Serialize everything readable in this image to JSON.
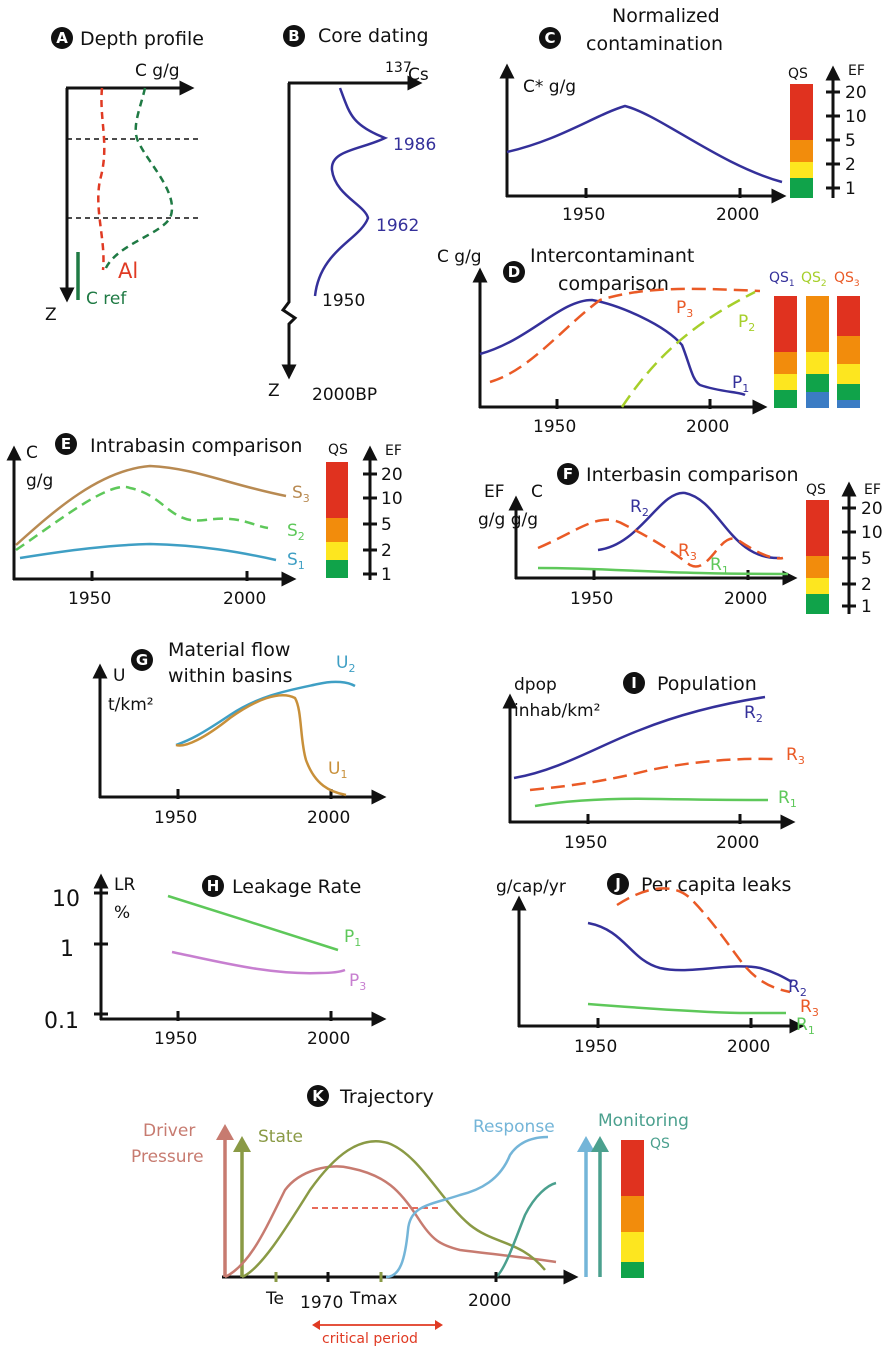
{
  "colors": {
    "navy": "#34309a",
    "orange": "#ea5a26",
    "green": "#1f7a44",
    "lime": "#a6cf2a",
    "red": "#e03a23",
    "brown": "#b88a52",
    "lightgreen": "#5ec85a",
    "teal": "#3f9fc4",
    "gold": "#c8903a",
    "violet": "#c77fd0",
    "rose": "#c77b70",
    "olive": "#8a9a45",
    "skyblue": "#74b5d8",
    "seagreen": "#4ba08e",
    "qs_red": "#e0321f",
    "qs_orange": "#f28c0c",
    "qs_yellow": "#fde61f",
    "qs_green": "#10a34a",
    "qs_blue": "#3b7cc4"
  },
  "panels": {
    "a": {
      "letter": "A",
      "title": "Depth profile",
      "x_axis": "C g/g",
      "y_axis": "Z",
      "al": "Al",
      "cref": "C ref"
    },
    "b": {
      "letter": "B",
      "title": "Core dating",
      "x_axis_sup": "137",
      "x_axis": "Cs",
      "y_axis": "Z",
      "d1986": "1986",
      "d1962": "1962",
      "d1950": "1950",
      "bp": "2000BP"
    },
    "c": {
      "letter": "C",
      "title_1": "Normalized",
      "title_2": "contamination",
      "y_axis": "C* g/g",
      "ticks": [
        "1950",
        "2000"
      ],
      "qs": "QS",
      "ef": "EF",
      "ef_ticks": [
        "20",
        "10",
        "5",
        "2",
        "1"
      ]
    },
    "d": {
      "letter": "D",
      "title_1": "Intercontaminant",
      "title_2": "comparison",
      "y_axis": "C g/g",
      "ticks": [
        "1950",
        "2000"
      ],
      "p3": "P",
      "p3_sub": "3",
      "p2": "P",
      "p2_sub": "2",
      "p1": "P",
      "p1_sub": "1",
      "qs1": "QS",
      "qs1_sub": "1",
      "qs2": "QS",
      "qs2_sub": "2",
      "qs3": "QS",
      "qs3_sub": "3"
    },
    "e": {
      "letter": "E",
      "title": "Intrabasin comparison",
      "y_axis_1": "C",
      "y_axis_2": "g/g",
      "ticks": [
        "1950",
        "2000"
      ],
      "s3": "S",
      "s3_sub": "3",
      "s2": "S",
      "s2_sub": "2",
      "s1": "S",
      "s1_sub": "1",
      "qs": "QS",
      "ef": "EF",
      "ef_ticks": [
        "20",
        "10",
        "5",
        "2",
        "1"
      ]
    },
    "f": {
      "letter": "F",
      "title": "Interbasin comparison",
      "y_ef": "EF",
      "y_c": "C",
      "y_unit": "g/g g/g",
      "ticks": [
        "1950",
        "2000"
      ],
      "r2": "R",
      "r2_sub": "2",
      "r3": "R",
      "r3_sub": "3",
      "r1": "R",
      "r1_sub": "1",
      "qs": "QS",
      "ef": "EF",
      "ef_ticks": [
        "20",
        "10",
        "5",
        "2",
        "1"
      ]
    },
    "g": {
      "letter": "G",
      "title_1": "Material flow",
      "title_2": "within basins",
      "y_axis_1": "U",
      "y_axis_2": "t/km²",
      "ticks": [
        "1950",
        "2000"
      ],
      "u2": "U",
      "u2_sub": "2",
      "u1": "U",
      "u1_sub": "1"
    },
    "h": {
      "letter": "H",
      "title": "Leakage Rate",
      "y_axis_1": "LR",
      "y_axis_2": "%",
      "y_ticks": [
        "10",
        "1",
        "0.1"
      ],
      "ticks": [
        "1950",
        "2000"
      ],
      "p1": "P",
      "p1_sub": "1",
      "p3": "P",
      "p3_sub": "3"
    },
    "i": {
      "letter": "I",
      "title": "Population",
      "y_axis_1": "dpop",
      "y_axis_2": "inhab/km²",
      "ticks": [
        "1950",
        "2000"
      ],
      "r2": "R",
      "r2_sub": "2",
      "r3": "R",
      "r3_sub": "3",
      "r1": "R",
      "r1_sub": "1"
    },
    "j": {
      "letter": "J",
      "title": "Per capita leaks",
      "y_axis": "g/cap/yr",
      "ticks": [
        "1950",
        "2000"
      ],
      "r2": "R",
      "r2_sub": "2",
      "r3": "R",
      "r3_sub": "3",
      "r1": "R",
      "r1_sub": "1"
    },
    "k": {
      "letter": "K",
      "title": "Trajectory",
      "driver": "Driver",
      "pressure": "Pressure",
      "state": "State",
      "response": "Response",
      "monitoring": "Monitoring",
      "qs": "QS",
      "te": "Te",
      "y1970": "1970",
      "tmax": "Tmax",
      "y2000": "2000",
      "critical": "critical period"
    }
  }
}
